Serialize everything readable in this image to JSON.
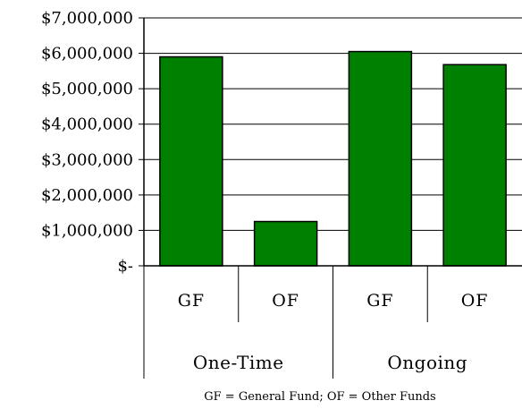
{
  "chart_data": {
    "type": "bar",
    "ylim": [
      0,
      7000000
    ],
    "y_ticks": [
      0,
      1000000,
      2000000,
      3000000,
      4000000,
      5000000,
      6000000,
      7000000
    ],
    "y_tick_labels": [
      "$-",
      "$1,000,000",
      "$2,000,000",
      "$3,000,000",
      "$4,000,000",
      "$5,000,000",
      "$6,000,000",
      "$7,000,000"
    ],
    "categories": [
      "GF",
      "OF",
      "GF",
      "OF"
    ],
    "groups": [
      {
        "label": "One-Time",
        "categories": [
          "GF",
          "OF"
        ]
      },
      {
        "label": "Ongoing",
        "categories": [
          "GF",
          "OF"
        ]
      }
    ],
    "series": [
      {
        "values": [
          5900000,
          1250000,
          6050000,
          5680000
        ],
        "color": "#008000"
      }
    ],
    "grid": true,
    "legend": null,
    "title": "",
    "xlabel": "",
    "ylabel": "",
    "footnote": "GF = General Fund; OF = Other Funds"
  },
  "colors": {
    "bar_fill": "#008000",
    "bar_stroke": "#000000",
    "grid": "#000000"
  }
}
